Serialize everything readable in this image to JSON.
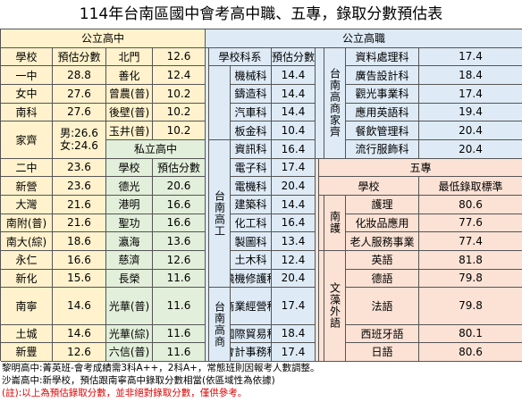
{
  "title": "114年台南區國中會考高中職、五專，錄取分數預估表",
  "public_high": {
    "header": "公立高中",
    "col_school": "學校",
    "col_score": "預估分數",
    "left_rows": [
      {
        "name": "一中",
        "score": "28.8"
      },
      {
        "name": "女中",
        "score": "27.6"
      },
      {
        "name": "南科",
        "score": "27.6"
      },
      {
        "name": "家齊",
        "score": "",
        "line1": "男:26.6",
        "line2": "女:24.6"
      },
      {
        "name": "二中",
        "score": "23.6"
      },
      {
        "name": "新營",
        "score": "23.6"
      },
      {
        "name": "大灣",
        "score": "21.6"
      },
      {
        "name": "南附(普)",
        "score": "21.6"
      },
      {
        "name": "南大(綜)",
        "score": "18.6"
      },
      {
        "name": "永仁",
        "score": "16.6"
      },
      {
        "name": "新化",
        "score": "15.6"
      },
      {
        "name": "南寧",
        "score": "14.6"
      },
      {
        "name": "土城",
        "score": "14.6"
      },
      {
        "name": "新豐",
        "score": "12.6"
      }
    ],
    "right_rows": [
      {
        "name": "北門",
        "score": "12.6"
      },
      {
        "name": "善化",
        "score": "12.4"
      },
      {
        "name": "曾農(普)",
        "score": "10.2"
      },
      {
        "name": "後壁(普)",
        "score": "10.2"
      },
      {
        "name": "玉井(普)",
        "score": "10.2"
      }
    ]
  },
  "private_high": {
    "header": "私立高中",
    "col_school": "學校",
    "col_score": "預估分數",
    "rows": [
      {
        "name": "德光",
        "score": "20.6"
      },
      {
        "name": "港明",
        "score": "16.6"
      },
      {
        "name": "聖功",
        "score": "16.6"
      },
      {
        "name": "瀛海",
        "score": "13.6"
      },
      {
        "name": "慈濟",
        "score": "12.6"
      },
      {
        "name": "長榮",
        "score": "11.6"
      },
      {
        "name": "光華(普)",
        "score": "11.6"
      },
      {
        "name": "光華(綜)",
        "score": "11.6"
      },
      {
        "name": "六信(普)",
        "score": "11.6"
      }
    ]
  },
  "public_vocational": {
    "header": "公立高職",
    "col_dept": "學校科系",
    "col_score": "預估分數",
    "group_tainan_industrial": "台南高工",
    "group_tainan_commercial": "台南高商",
    "group_tainan_home": "台南高商家齊",
    "industrial_rows": [
      {
        "name": "機械科",
        "score": "14.4"
      },
      {
        "name": "鑄造科",
        "score": "14.4"
      },
      {
        "name": "汽車科",
        "score": "14.4"
      },
      {
        "name": "板金科",
        "score": "10.4"
      },
      {
        "name": "資訊科",
        "score": "16.4"
      },
      {
        "name": "電子科",
        "score": "17.4"
      },
      {
        "name": "電機科",
        "score": "20.4"
      },
      {
        "name": "建築科",
        "score": "14.4"
      },
      {
        "name": "化工科",
        "score": "16.4"
      },
      {
        "name": "製圖科",
        "score": "13.4"
      },
      {
        "name": "土木科",
        "score": "12.4"
      },
      {
        "name": "飛機修護科",
        "score": "20.4"
      }
    ],
    "commercial_rows": [
      {
        "name": "商業經營科",
        "score": "17.4"
      },
      {
        "name": "國際貿易科",
        "score": "18.4"
      },
      {
        "name": "會計事務科",
        "score": "17.4"
      }
    ],
    "home_rows": [
      {
        "name": "資料處理科",
        "score": "17.4"
      },
      {
        "name": "廣告設計科",
        "score": "18.4"
      },
      {
        "name": "觀光事業科",
        "score": "17.4"
      },
      {
        "name": "應用英語科",
        "score": "19.4"
      },
      {
        "name": "餐飲管理科",
        "score": "20.4"
      },
      {
        "name": "流行服飾科",
        "score": "20.4"
      }
    ]
  },
  "junior_college": {
    "header": "五專",
    "col_school": "學校",
    "col_score": "最低錄取標準",
    "group_nanhu": "南護",
    "group_wenzao": "文藻外語",
    "nanhu_rows": [
      {
        "name": "護理",
        "score": "80.6"
      },
      {
        "name": "化妝品應用",
        "score": "77.6"
      },
      {
        "name": "老人服務事業",
        "score": "77.4"
      }
    ],
    "wenzao_rows": [
      {
        "name": "英語",
        "score": "81.8"
      },
      {
        "name": "德語",
        "score": "79.8"
      },
      {
        "name": "法語",
        "score": "79.8"
      },
      {
        "name": "西班牙語",
        "score": "80.1"
      },
      {
        "name": "日語",
        "score": "80.6"
      }
    ]
  },
  "notes": [
    "黎明高中:菁英班-會考成績需3科A++，2科A+，常態班則因報考人數調整。",
    "沙崙高中:新學校，預估跟南寧高中錄取分數相當(依區域性為依據)",
    "(註):以上為預估錄取分數，並非絕對錄取分數，僅供參考。"
  ],
  "colors": {
    "public_high": "#FFF2CC",
    "vocational": "#DEEBF7",
    "private_high": "#E2EFDA",
    "junior_college": "#FBE2D5",
    "note_red": "#E00000"
  }
}
